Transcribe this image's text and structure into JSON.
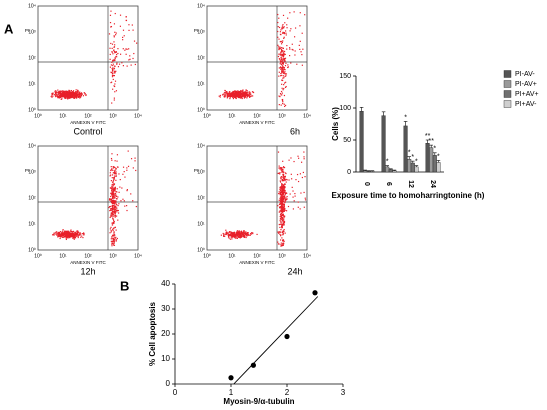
{
  "panel_labels": [
    "A",
    "B"
  ],
  "flow_axes": {
    "x_label": "ANNEXIN V FITC",
    "y_label": "PI",
    "ticks": [
      "10⁰",
      "10¹",
      "10²",
      "10³",
      "10⁴"
    ]
  },
  "flow_plots": [
    "Control",
    "6h",
    "12h",
    "24h"
  ],
  "chart_data": [
    {
      "type": "bar",
      "x_label": "Exposure time to homoharringtonine (h)",
      "y_label": "Cells (%)",
      "categories": [
        "0",
        "6",
        "12",
        "24"
      ],
      "ylim": [
        0,
        150
      ],
      "yticks": [
        0,
        50,
        100,
        150
      ],
      "series": [
        {
          "name": "PI-AV-",
          "color": "#555555",
          "values": [
            95,
            88,
            72,
            45
          ],
          "errors": [
            6,
            6,
            7,
            5
          ],
          "significance": [
            null,
            null,
            "*",
            "**"
          ]
        },
        {
          "name": "PI-AV+",
          "color": "#9a9a9a",
          "values": [
            2,
            8,
            20,
            38
          ],
          "errors": [
            1,
            2,
            4,
            4
          ],
          "significance": [
            null,
            "*",
            "*",
            "**"
          ]
        },
        {
          "name": "PI+AV+",
          "color": "#707070",
          "values": [
            1,
            4,
            14,
            26
          ],
          "errors": [
            1,
            1,
            3,
            4
          ],
          "significance": [
            null,
            null,
            "*",
            "*"
          ]
        },
        {
          "name": "PI+AV-",
          "color": "#cfcfcf",
          "values": [
            1,
            2,
            8,
            15
          ],
          "errors": [
            1,
            1,
            2,
            3
          ],
          "significance": [
            null,
            null,
            "*",
            "*"
          ]
        }
      ]
    },
    {
      "type": "scatter",
      "x_label": "Myosin-9/α-tubulin",
      "y_label": "% Cell apoptosis",
      "xlim": [
        0,
        3
      ],
      "xticks": [
        0,
        1,
        2,
        3
      ],
      "ylim": [
        0,
        40
      ],
      "yticks": [
        0,
        10,
        20,
        30,
        40
      ],
      "x": [
        1.0,
        1.4,
        2.0,
        2.5
      ],
      "values": [
        2.5,
        7.5,
        19,
        36.5
      ],
      "color": "#000000",
      "trend": {
        "x": [
          1.05,
          2.55
        ],
        "y": [
          0,
          35
        ]
      }
    }
  ]
}
